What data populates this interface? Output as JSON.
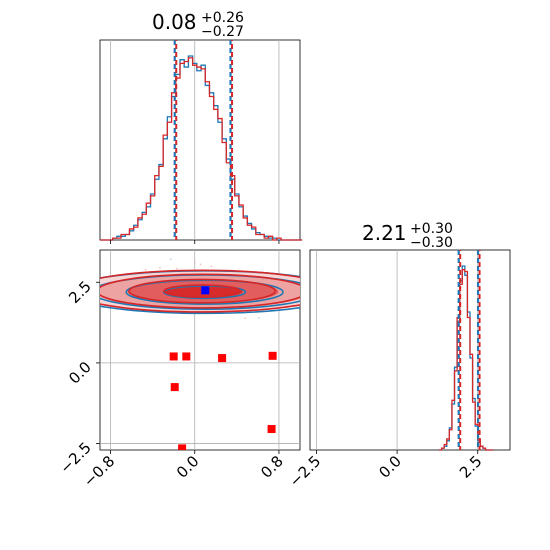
{
  "chart_data": [
    {
      "type": "histogram",
      "panel": "marginal-x",
      "title": {
        "main": "0.08",
        "sup": "+0.26",
        "sub": "−0.27"
      },
      "xlim": [
        -0.9,
        1.0
      ],
      "quantiles": [
        -0.19,
        0.08,
        0.34
      ],
      "grid": true,
      "series": [
        {
          "color": "#1f77b4",
          "bin_edges_start": -0.9,
          "bin_width": 0.04,
          "counts": [
            0,
            0,
            0,
            1,
            2,
            2,
            3,
            5,
            8,
            11,
            15,
            18,
            25,
            33,
            41,
            55,
            67,
            78,
            90,
            98,
            94,
            100,
            96,
            92,
            95,
            84,
            80,
            73,
            64,
            55,
            44,
            33,
            25,
            18,
            13,
            9,
            6,
            4,
            3,
            2,
            1,
            1,
            0,
            0,
            0,
            0,
            0,
            0
          ]
        },
        {
          "color": "#d62728",
          "bin_edges_start": -0.9,
          "bin_width": 0.04,
          "counts": [
            0,
            0,
            0,
            1,
            1,
            3,
            3,
            6,
            7,
            12,
            14,
            20,
            24,
            35,
            40,
            57,
            64,
            80,
            88,
            96,
            97,
            99,
            95,
            94,
            93,
            86,
            78,
            71,
            66,
            53,
            42,
            35,
            24,
            19,
            12,
            8,
            7,
            3,
            3,
            1,
            2,
            0,
            1,
            0,
            0,
            0,
            0,
            0
          ]
        }
      ]
    },
    {
      "type": "histogram",
      "panel": "marginal-y",
      "title": {
        "main": "2.21",
        "sup": "+0.30",
        "sub": "−0.30"
      },
      "xlim": [
        -2.7,
        3.5
      ],
      "quantiles": [
        1.91,
        2.21,
        2.51
      ],
      "grid": true,
      "series": [
        {
          "color": "#1f77b4",
          "bin_edges_start": 1.3,
          "bin_width": 0.08,
          "counts": [
            0,
            1,
            2,
            5,
            12,
            25,
            45,
            70,
            92,
            100,
            95,
            75,
            50,
            28,
            13,
            5,
            2,
            1,
            0,
            0,
            0
          ]
        },
        {
          "color": "#d62728",
          "bin_edges_start": 1.3,
          "bin_width": 0.08,
          "counts": [
            0,
            1,
            3,
            6,
            11,
            27,
            43,
            72,
            90,
            98,
            97,
            72,
            52,
            26,
            14,
            6,
            2,
            1,
            0,
            0,
            0
          ]
        }
      ]
    },
    {
      "type": "contour",
      "panel": "joint",
      "xlim": [
        -0.9,
        1.0
      ],
      "ylim": [
        -2.7,
        3.5
      ],
      "grid": true,
      "center": [
        0.08,
        2.21
      ],
      "contour_levels_sigma": [
        0.6,
        1.15,
        1.65,
        2.05
      ],
      "sigma": [
        0.265,
        0.3
      ],
      "series": [
        {
          "color": "#1f77b4"
        },
        {
          "color": "#d62728"
        }
      ],
      "markers": {
        "truth": {
          "color": "#0000ff",
          "x": 0.1,
          "y": 2.25
        },
        "points": {
          "color": "#ff0000",
          "x": [
            -0.2,
            -0.08,
            0.26,
            0.74,
            -0.19,
            0.73,
            -0.12
          ],
          "y": [
            0.2,
            0.2,
            0.15,
            0.22,
            -0.75,
            -2.05,
            -2.65
          ]
        }
      }
    }
  ],
  "ticks": {
    "x_param": [
      "−0.8",
      "0.0",
      "0.8"
    ],
    "x_param_values": [
      -0.8,
      0.0,
      0.8
    ],
    "y_param": [
      "−2.5",
      "0.0",
      "2.5"
    ],
    "y_param_values": [
      -2.5,
      0.0,
      2.5
    ]
  }
}
